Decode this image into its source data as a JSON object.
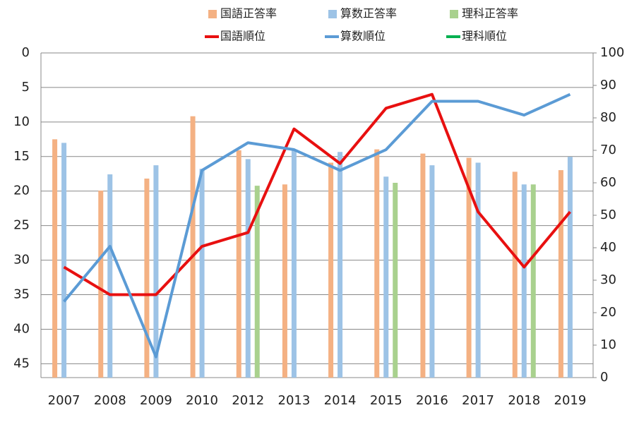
{
  "chart_data": {
    "type": "bar-line",
    "categories": [
      "2007",
      "2008",
      "2009",
      "2010",
      "2012",
      "2013",
      "2014",
      "2015",
      "2016",
      "2017",
      "2018",
      "2019"
    ],
    "series": [
      {
        "name": "国語正答率",
        "type": "bar",
        "axis": "y2",
        "color": "#f4b183",
        "values": [
          73.4,
          57.6,
          61.3,
          80.5,
          70,
          59.5,
          66.2,
          70.3,
          69,
          67.7,
          63.4,
          63.9
        ]
      },
      {
        "name": "算数正答率",
        "type": "bar",
        "axis": "y2",
        "color": "#9dc3e6",
        "values": [
          72.3,
          62.6,
          65.4,
          64.3,
          67.3,
          70.1,
          69.5,
          61.9,
          65.4,
          66.2,
          59.5,
          68
        ]
      },
      {
        "name": "理科正答率",
        "type": "bar",
        "axis": "y2",
        "color": "#a9d18e",
        "values": [
          null,
          null,
          null,
          null,
          59.1,
          null,
          null,
          60,
          null,
          null,
          59.5,
          null
        ]
      },
      {
        "name": "国語順位",
        "type": "line",
        "color": "#e81010",
        "values": [
          31,
          35,
          35,
          28,
          26,
          11,
          16,
          8,
          6,
          23,
          31,
          23
        ]
      },
      {
        "name": "算数順位",
        "type": "line",
        "color": "#5b9bd5",
        "values": [
          36,
          28,
          44,
          17,
          13,
          14,
          17,
          14,
          7,
          7,
          9,
          6
        ]
      },
      {
        "name": "理科順位",
        "type": "line",
        "color": "#00b050",
        "values": [
          null,
          null,
          null,
          null,
          null,
          null,
          null,
          null,
          null,
          null,
          null,
          null
        ]
      }
    ],
    "ylim": [
      47,
      0
    ],
    "yticks": [
      0,
      5,
      10,
      15,
      20,
      25,
      30,
      35,
      40,
      45
    ],
    "y2lim": [
      0,
      100
    ],
    "y2ticks": [
      0,
      10,
      20,
      30,
      40,
      50,
      60,
      70,
      80,
      90,
      100
    ],
    "grid": true,
    "legend": "top"
  }
}
